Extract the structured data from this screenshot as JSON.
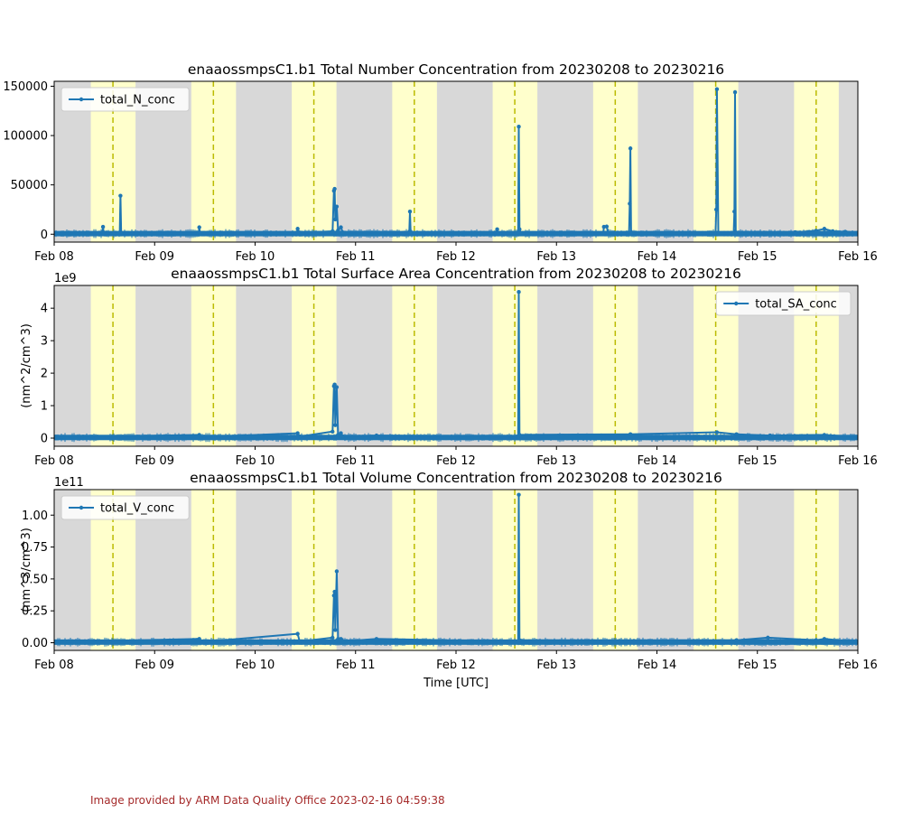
{
  "footer": "Image provided by ARM Data Quality Office 2023-02-16 04:59:38",
  "colors": {
    "series": "#1f77b4",
    "day": "#ffffcc",
    "night": "#d8d8d8",
    "noon_line": "#bbbb00"
  },
  "chart_data": [
    {
      "type": "line",
      "title": "enaaossmpsC1.b1 Total Number Concentration from 20230208 to 20230216",
      "xlabel": "",
      "ylabel": "",
      "offset_text": "",
      "xticks": [
        "Feb 08",
        "Feb 09",
        "Feb 10",
        "Feb 11",
        "Feb 12",
        "Feb 13",
        "Feb 14",
        "Feb 15",
        "Feb 16"
      ],
      "xlim": [
        "2023-02-08",
        "2023-02-16"
      ],
      "ylim": [
        -8000,
        155000
      ],
      "yticks": [
        0,
        50000,
        100000,
        150000
      ],
      "ytick_labels": [
        "0",
        "50000",
        "100000",
        "150000"
      ],
      "legend": "top-left",
      "grid": false,
      "baseline": 600,
      "series": [
        {
          "name": "total_N_conc",
          "points": [
            [
              "2023-02-08 00:00",
              600
            ],
            [
              "2023-02-08 11:30",
              500
            ],
            [
              "2023-02-08 11:40",
              7500
            ],
            [
              "2023-02-08 11:50",
              500
            ],
            [
              "2023-02-08 15:40",
              500
            ],
            [
              "2023-02-08 15:50",
              39000
            ],
            [
              "2023-02-08 16:00",
              500
            ],
            [
              "2023-02-09 10:30",
              500
            ],
            [
              "2023-02-09 10:40",
              7000
            ],
            [
              "2023-02-09 10:50",
              800
            ],
            [
              "2023-02-10 10:00",
              800
            ],
            [
              "2023-02-10 10:10",
              5500
            ],
            [
              "2023-02-10 10:30",
              1500
            ],
            [
              "2023-02-10 18:30",
              3000
            ],
            [
              "2023-02-10 18:50",
              44000
            ],
            [
              "2023-02-10 19:00",
              46000
            ],
            [
              "2023-02-10 19:10",
              15000
            ],
            [
              "2023-02-10 19:30",
              28000
            ],
            [
              "2023-02-10 19:50",
              4000
            ],
            [
              "2023-02-10 20:30",
              7000
            ],
            [
              "2023-02-10 21:00",
              1500
            ],
            [
              "2023-02-11 12:50",
              1000
            ],
            [
              "2023-02-11 13:00",
              23000
            ],
            [
              "2023-02-11 13:10",
              800
            ],
            [
              "2023-02-12 09:40",
              500
            ],
            [
              "2023-02-12 09:50",
              5000
            ],
            [
              "2023-02-12 10:00",
              600
            ],
            [
              "2023-02-12 14:50",
              600
            ],
            [
              "2023-02-12 15:00",
              109000
            ],
            [
              "2023-02-12 15:10",
              5000
            ],
            [
              "2023-02-12 15:30",
              600
            ],
            [
              "2023-02-13 11:10",
              600
            ],
            [
              "2023-02-13 11:20",
              7500
            ],
            [
              "2023-02-13 12:00",
              7800
            ],
            [
              "2023-02-13 12:20",
              800
            ],
            [
              "2023-02-13 17:20",
              800
            ],
            [
              "2023-02-13 17:30",
              31000
            ],
            [
              "2023-02-13 17:40",
              87000
            ],
            [
              "2023-02-13 17:50",
              800
            ],
            [
              "2023-02-14 14:00",
              800
            ],
            [
              "2023-02-14 14:10",
              25000
            ],
            [
              "2023-02-14 14:20",
              147000
            ],
            [
              "2023-02-14 14:40",
              1000
            ],
            [
              "2023-02-14 18:20",
              1000
            ],
            [
              "2023-02-14 18:30",
              23000
            ],
            [
              "2023-02-14 18:40",
              144000
            ],
            [
              "2023-02-14 18:50",
              1000
            ],
            [
              "2023-02-15 09:00",
              2000
            ],
            [
              "2023-02-15 14:00",
              3500
            ],
            [
              "2023-02-15 16:00",
              5500
            ],
            [
              "2023-02-15 18:00",
              3000
            ],
            [
              "2023-02-15 21:00",
              2500
            ],
            [
              "2023-02-16 00:00",
              1500
            ]
          ]
        }
      ]
    },
    {
      "type": "line",
      "title": "enaaossmpsC1.b1 Total Surface Area Concentration from 20230208 to 20230216",
      "xlabel": "",
      "ylabel": "(nm^2/cm^3)",
      "offset_text": "1e9",
      "xticks": [
        "Feb 08",
        "Feb 09",
        "Feb 10",
        "Feb 11",
        "Feb 12",
        "Feb 13",
        "Feb 14",
        "Feb 15",
        "Feb 16"
      ],
      "xlim": [
        "2023-02-08",
        "2023-02-16"
      ],
      "ylim": [
        -0.25,
        4.7
      ],
      "yticks": [
        0,
        1,
        2,
        3,
        4
      ],
      "ytick_labels": [
        "0",
        "1",
        "2",
        "3",
        "4"
      ],
      "legend": "top-right",
      "grid": false,
      "baseline": 0.02,
      "series": [
        {
          "name": "total_SA_conc",
          "points": [
            [
              "2023-02-08 00:00",
              0.02
            ],
            [
              "2023-02-09 10:40",
              0.1
            ],
            [
              "2023-02-09 11:00",
              0.03
            ],
            [
              "2023-02-10 10:10",
              0.15
            ],
            [
              "2023-02-10 10:40",
              0.05
            ],
            [
              "2023-02-10 18:30",
              0.2
            ],
            [
              "2023-02-10 18:50",
              1.6
            ],
            [
              "2023-02-10 19:00",
              1.65
            ],
            [
              "2023-02-10 19:10",
              0.4
            ],
            [
              "2023-02-10 19:30",
              1.57
            ],
            [
              "2023-02-10 19:50",
              0.1
            ],
            [
              "2023-02-10 20:30",
              0.15
            ],
            [
              "2023-02-10 21:00",
              0.05
            ],
            [
              "2023-02-11 05:00",
              0.08
            ],
            [
              "2023-02-12 14:50",
              0.05
            ],
            [
              "2023-02-12 15:00",
              4.5
            ],
            [
              "2023-02-12 15:10",
              0.1
            ],
            [
              "2023-02-13 17:40",
              0.12
            ],
            [
              "2023-02-14 14:20",
              0.18
            ],
            [
              "2023-02-14 19:00",
              0.12
            ],
            [
              "2023-02-15 03:00",
              0.08
            ],
            [
              "2023-02-15 16:00",
              0.1
            ],
            [
              "2023-02-16 00:00",
              0.03
            ]
          ]
        }
      ]
    },
    {
      "type": "line",
      "title": "enaaossmpsC1.b1 Total Volume Concentration from 20230208 to 20230216",
      "xlabel": "Time [UTC]",
      "ylabel": "(nm^3/cm^3)",
      "offset_text": "1e11",
      "xticks": [
        "Feb 08",
        "Feb 09",
        "Feb 10",
        "Feb 11",
        "Feb 12",
        "Feb 13",
        "Feb 14",
        "Feb 15",
        "Feb 16"
      ],
      "xlim": [
        "2023-02-08",
        "2023-02-16"
      ],
      "ylim": [
        -0.06,
        1.2
      ],
      "yticks": [
        0,
        0.25,
        0.5,
        0.75,
        1.0
      ],
      "ytick_labels": [
        "0.00",
        "0.25",
        "0.50",
        "0.75",
        "1.00"
      ],
      "legend": "top-left",
      "grid": false,
      "baseline": 0.005,
      "series": [
        {
          "name": "total_V_conc",
          "points": [
            [
              "2023-02-08 00:00",
              0.005
            ],
            [
              "2023-02-09 10:40",
              0.03
            ],
            [
              "2023-02-09 11:00",
              0.005
            ],
            [
              "2023-02-10 10:10",
              0.07
            ],
            [
              "2023-02-10 10:40",
              0.01
            ],
            [
              "2023-02-10 18:30",
              0.04
            ],
            [
              "2023-02-10 18:50",
              0.37
            ],
            [
              "2023-02-10 19:00",
              0.4
            ],
            [
              "2023-02-10 19:10",
              0.1
            ],
            [
              "2023-02-10 19:30",
              0.56
            ],
            [
              "2023-02-10 19:50",
              0.03
            ],
            [
              "2023-02-10 20:30",
              0.03
            ],
            [
              "2023-02-10 21:00",
              0.01
            ],
            [
              "2023-02-11 05:00",
              0.03
            ],
            [
              "2023-02-12 14:50",
              0.01
            ],
            [
              "2023-02-12 15:00",
              1.16
            ],
            [
              "2023-02-12 15:10",
              0.02
            ],
            [
              "2023-02-14 19:00",
              0.02
            ],
            [
              "2023-02-15 02:30",
              0.04
            ],
            [
              "2023-02-15 14:00",
              0.02
            ],
            [
              "2023-02-15 16:00",
              0.03
            ],
            [
              "2023-02-16 00:00",
              0.005
            ]
          ]
        }
      ]
    }
  ]
}
